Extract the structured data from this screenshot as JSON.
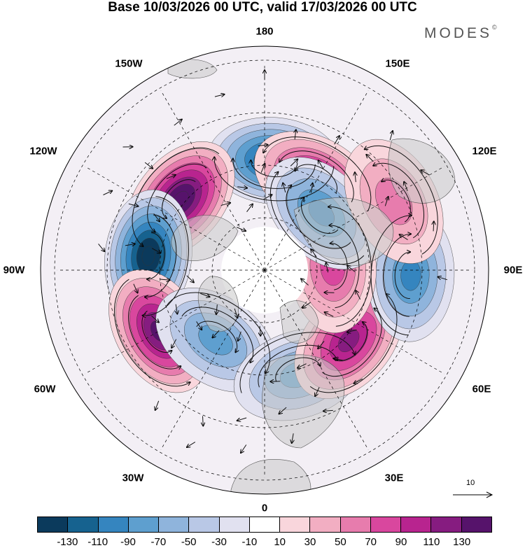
{
  "title": "Base 10/03/2026 00 UTC, valid 17/03/2026 00 UTC",
  "brand": {
    "text": "MODES",
    "mark": "©"
  },
  "longitude_labels": {
    "top": "180",
    "e150": "150E",
    "e120": "120E",
    "e90": "90E",
    "e60": "60E",
    "e30": "30E",
    "bottom": "0",
    "w30": "30W",
    "w60": "60W",
    "w90": "90W",
    "w120": "120W",
    "w150": "150W"
  },
  "reference_vector": {
    "value": "10",
    "icon": "arrow-right-icon"
  },
  "colorbar": {
    "colors": [
      "#0b3a5c",
      "#16628f",
      "#3585bf",
      "#5e9fcf",
      "#8fb4dc",
      "#b9c8e6",
      "#e1e1f0",
      "#ffffff",
      "#f9d6dc",
      "#f2aec2",
      "#e77cad",
      "#d9479e",
      "#b8248f",
      "#861c80",
      "#56136b"
    ],
    "ticks": [
      "-130",
      "-110",
      "-90",
      "-70",
      "-50",
      "-30",
      "-10",
      "10",
      "30",
      "50",
      "70",
      "90",
      "110",
      "130"
    ]
  },
  "anomaly_centers": [
    {
      "label": "negative",
      "lon": 175,
      "lat": 45,
      "value": -120,
      "color": "#16628f"
    },
    {
      "label": "positive",
      "lon": 150,
      "lat": 48,
      "value": 105,
      "color": "#b8248f"
    },
    {
      "label": "positive",
      "lon": -130,
      "lat": 45,
      "value": 130,
      "color": "#56136b"
    },
    {
      "label": "negative",
      "lon": -97,
      "lat": 42,
      "value": -135,
      "color": "#0b3a5c"
    },
    {
      "label": "positive",
      "lon": -60,
      "lat": 40,
      "value": 120,
      "color": "#861c80"
    },
    {
      "label": "negative",
      "lon": -35,
      "lat": 55,
      "value": -60,
      "color": "#5e9fcf"
    },
    {
      "label": "negative",
      "lon": 18,
      "lat": 45,
      "value": -60,
      "color": "#5e9fcf"
    },
    {
      "label": "positive",
      "lon": 50,
      "lat": 45,
      "value": 100,
      "color": "#b8248f"
    },
    {
      "label": "negative",
      "lon": 88,
      "lat": 30,
      "value": -80,
      "color": "#3585bf"
    },
    {
      "label": "positive",
      "lon": 93,
      "lat": 62,
      "value": 55,
      "color": "#e77cad"
    },
    {
      "label": "negative",
      "lon": 135,
      "lat": 57,
      "value": -70,
      "color": "#5e9fcf"
    },
    {
      "label": "positive",
      "lon": 118,
      "lat": 30,
      "value": 40,
      "color": "#f2aec2"
    }
  ]
}
